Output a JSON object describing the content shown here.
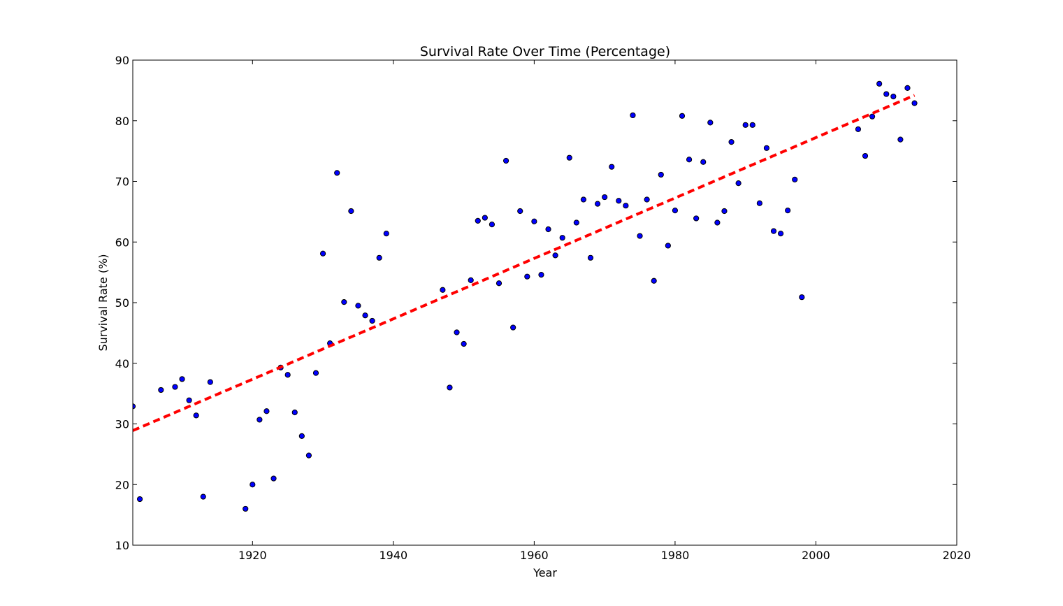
{
  "chart_data": {
    "type": "scatter",
    "title": "Survival Rate Over Time (Percentage)",
    "xlabel": "Year",
    "ylabel": "Survival Rate (%)",
    "xlim": [
      1903,
      2020
    ],
    "ylim": [
      10,
      90
    ],
    "xticks": [
      1920,
      1940,
      1960,
      1980,
      2000,
      2020
    ],
    "yticks": [
      10,
      20,
      30,
      40,
      50,
      60,
      70,
      80,
      90
    ],
    "grid": false,
    "legend": "none",
    "point_color": "#0000ff",
    "trend_color": "#ff0000",
    "trend_line": {
      "x": [
        1903,
        2014
      ],
      "y": [
        28.9,
        84.2
      ],
      "style": "dashed"
    },
    "points": [
      {
        "x": 1903,
        "y": 32.9
      },
      {
        "x": 1904,
        "y": 17.6
      },
      {
        "x": 1907,
        "y": 35.6
      },
      {
        "x": 1909,
        "y": 36.1
      },
      {
        "x": 1910,
        "y": 37.4
      },
      {
        "x": 1911,
        "y": 33.9
      },
      {
        "x": 1912,
        "y": 31.4
      },
      {
        "x": 1913,
        "y": 18.0
      },
      {
        "x": 1914,
        "y": 36.9
      },
      {
        "x": 1919,
        "y": 16.0
      },
      {
        "x": 1920,
        "y": 20.0
      },
      {
        "x": 1921,
        "y": 30.7
      },
      {
        "x": 1922,
        "y": 32.1
      },
      {
        "x": 1923,
        "y": 21.0
      },
      {
        "x": 1924,
        "y": 39.3
      },
      {
        "x": 1925,
        "y": 38.1
      },
      {
        "x": 1926,
        "y": 31.9
      },
      {
        "x": 1927,
        "y": 28.0
      },
      {
        "x": 1928,
        "y": 24.8
      },
      {
        "x": 1929,
        "y": 38.4
      },
      {
        "x": 1930,
        "y": 58.1
      },
      {
        "x": 1931,
        "y": 43.3
      },
      {
        "x": 1932,
        "y": 71.4
      },
      {
        "x": 1933,
        "y": 50.1
      },
      {
        "x": 1934,
        "y": 65.1
      },
      {
        "x": 1935,
        "y": 49.5
      },
      {
        "x": 1936,
        "y": 47.9
      },
      {
        "x": 1937,
        "y": 47.0
      },
      {
        "x": 1938,
        "y": 57.4
      },
      {
        "x": 1939,
        "y": 61.4
      },
      {
        "x": 1947,
        "y": 52.1
      },
      {
        "x": 1948,
        "y": 36.0
      },
      {
        "x": 1949,
        "y": 45.1
      },
      {
        "x": 1950,
        "y": 43.2
      },
      {
        "x": 1951,
        "y": 53.7
      },
      {
        "x": 1952,
        "y": 63.5
      },
      {
        "x": 1953,
        "y": 64.0
      },
      {
        "x": 1954,
        "y": 62.9
      },
      {
        "x": 1955,
        "y": 53.2
      },
      {
        "x": 1956,
        "y": 73.4
      },
      {
        "x": 1957,
        "y": 45.9
      },
      {
        "x": 1958,
        "y": 65.1
      },
      {
        "x": 1959,
        "y": 54.3
      },
      {
        "x": 1960,
        "y": 63.4
      },
      {
        "x": 1961,
        "y": 54.6
      },
      {
        "x": 1962,
        "y": 62.1
      },
      {
        "x": 1963,
        "y": 57.8
      },
      {
        "x": 1964,
        "y": 60.7
      },
      {
        "x": 1965,
        "y": 73.9
      },
      {
        "x": 1966,
        "y": 63.2
      },
      {
        "x": 1967,
        "y": 67.0
      },
      {
        "x": 1968,
        "y": 57.4
      },
      {
        "x": 1969,
        "y": 66.3
      },
      {
        "x": 1970,
        "y": 67.4
      },
      {
        "x": 1971,
        "y": 72.4
      },
      {
        "x": 1972,
        "y": 66.8
      },
      {
        "x": 1973,
        "y": 66.0
      },
      {
        "x": 1974,
        "y": 80.9
      },
      {
        "x": 1975,
        "y": 61.0
      },
      {
        "x": 1976,
        "y": 67.0
      },
      {
        "x": 1977,
        "y": 53.6
      },
      {
        "x": 1978,
        "y": 71.1
      },
      {
        "x": 1979,
        "y": 59.4
      },
      {
        "x": 1980,
        "y": 65.2
      },
      {
        "x": 1981,
        "y": 80.8
      },
      {
        "x": 1982,
        "y": 73.6
      },
      {
        "x": 1983,
        "y": 63.9
      },
      {
        "x": 1984,
        "y": 73.2
      },
      {
        "x": 1985,
        "y": 79.7
      },
      {
        "x": 1986,
        "y": 63.2
      },
      {
        "x": 1987,
        "y": 65.1
      },
      {
        "x": 1988,
        "y": 76.5
      },
      {
        "x": 1989,
        "y": 69.7
      },
      {
        "x": 1990,
        "y": 79.3
      },
      {
        "x": 1991,
        "y": 79.3
      },
      {
        "x": 1992,
        "y": 66.4
      },
      {
        "x": 1993,
        "y": 75.5
      },
      {
        "x": 1994,
        "y": 61.8
      },
      {
        "x": 1995,
        "y": 61.4
      },
      {
        "x": 1996,
        "y": 65.2
      },
      {
        "x": 1997,
        "y": 70.3
      },
      {
        "x": 1998,
        "y": 50.9
      },
      {
        "x": 2006,
        "y": 78.6
      },
      {
        "x": 2007,
        "y": 74.2
      },
      {
        "x": 2008,
        "y": 80.7
      },
      {
        "x": 2009,
        "y": 86.1
      },
      {
        "x": 2010,
        "y": 84.4
      },
      {
        "x": 2011,
        "y": 84.0
      },
      {
        "x": 2012,
        "y": 76.9
      },
      {
        "x": 2013,
        "y": 85.4
      },
      {
        "x": 2014,
        "y": 82.9
      }
    ]
  }
}
